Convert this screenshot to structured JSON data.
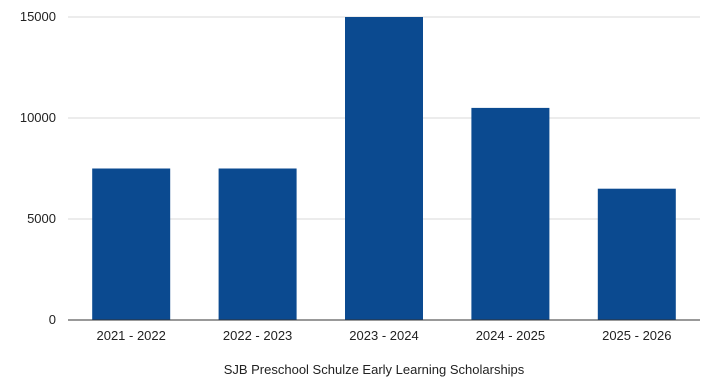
{
  "chart_data": {
    "type": "bar",
    "categories": [
      "2021 - 2022",
      "2022 - 2023",
      "2023 - 2024",
      "2024 - 2025",
      "2025 - 2026"
    ],
    "values": [
      7500,
      7500,
      15000,
      10500,
      6500
    ],
    "xlabel": "SJB Preschool Schulze Early Learning Scholarships",
    "ylabel": "",
    "ylim": [
      0,
      15000
    ],
    "yticks": [
      0,
      5000,
      10000,
      15000
    ],
    "grid": true,
    "bar_color": "#0b4a90"
  }
}
